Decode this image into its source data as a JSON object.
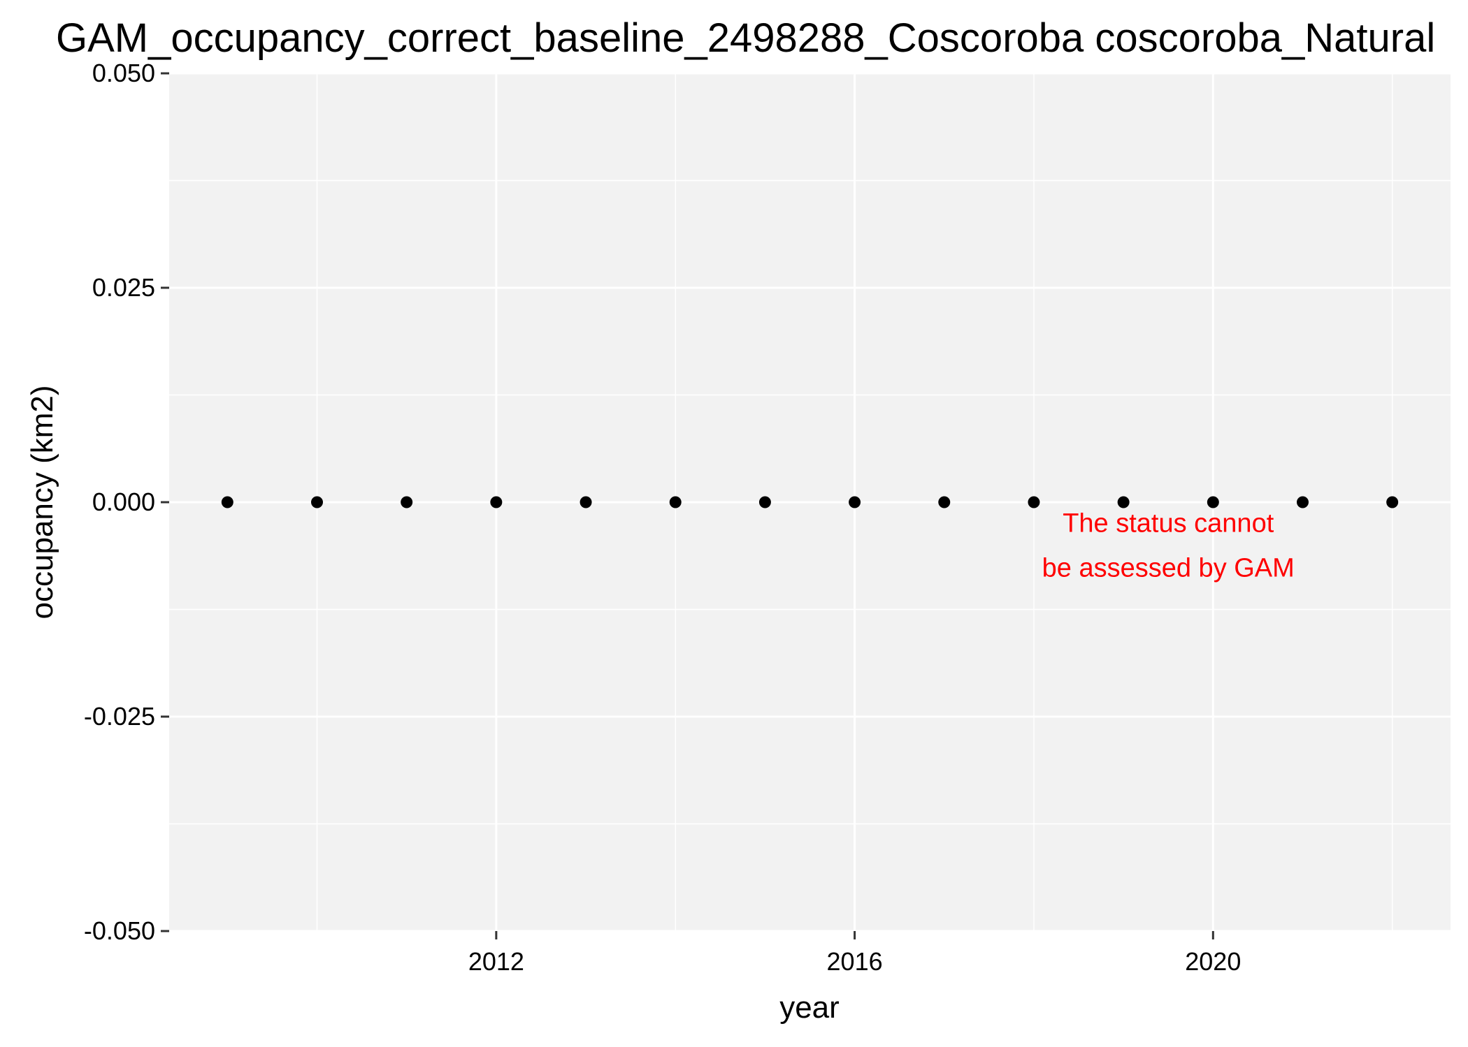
{
  "chart_data": {
    "type": "scatter",
    "title": "GAM_occupancy_correct_baseline_2498288_Coscoroba coscoroba_Natural",
    "xlabel": "year",
    "ylabel": "occupancy (km2)",
    "xlim": [
      2008.35,
      2022.65
    ],
    "ylim": [
      -0.05,
      0.05
    ],
    "x_ticks": [
      2012,
      2016,
      2020
    ],
    "x_tick_labels": [
      "2012",
      "2016",
      "2020"
    ],
    "x_minor_ticks": [
      2010,
      2014,
      2018,
      2022
    ],
    "y_ticks": [
      -0.05,
      -0.025,
      0,
      0.025,
      0.05
    ],
    "y_tick_labels": [
      "-0.050",
      "-0.025",
      "0.000",
      "0.025",
      "0.050"
    ],
    "y_minor_ticks": [
      -0.0375,
      -0.0125,
      0.0125,
      0.0375
    ],
    "grid": true,
    "legend": "none",
    "point_color": "#000000",
    "x": [
      2009,
      2010,
      2011,
      2012,
      2013,
      2014,
      2015,
      2016,
      2017,
      2018,
      2019,
      2020,
      2021,
      2022
    ],
    "y": [
      0,
      0,
      0,
      0,
      0,
      0,
      0,
      0,
      0,
      0,
      0,
      0,
      0,
      0
    ],
    "annotation": {
      "lines": [
        "The status cannot",
        "be assessed by GAM"
      ],
      "color": "#ff0000",
      "x": 2019.5,
      "y": -0.005
    }
  }
}
